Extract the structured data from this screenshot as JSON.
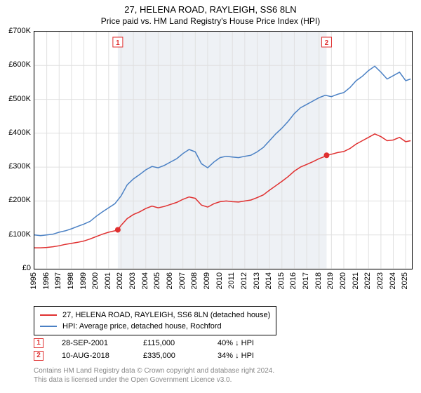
{
  "title": "27, HELENA ROAD, RAYLEIGH, SS6 8LN",
  "subtitle": "Price paid vs. HM Land Registry's House Price Index (HPI)",
  "chart": {
    "type": "line",
    "background_color": "#ffffff",
    "grid_color": "#e0e0e0",
    "plot_band_color": "#eef1f5",
    "border_color": "#000000",
    "title_fontsize": 13,
    "label_fontsize": 11,
    "line_width": 1.5,
    "ylim": [
      0,
      700000
    ],
    "ytick_step": 100000,
    "ytick_labels": [
      "£0",
      "£100K",
      "£200K",
      "£300K",
      "£400K",
      "£500K",
      "£600K",
      "£700K"
    ],
    "xlim": [
      1995,
      2025.5
    ],
    "xtick_step": 1,
    "xtick_labels": [
      "1995",
      "1996",
      "1997",
      "1998",
      "1999",
      "2000",
      "2001",
      "2002",
      "2003",
      "2004",
      "2005",
      "2006",
      "2007",
      "2008",
      "2009",
      "2010",
      "2011",
      "2012",
      "2013",
      "2014",
      "2015",
      "2016",
      "2017",
      "2018",
      "2019",
      "2020",
      "2021",
      "2022",
      "2023",
      "2024",
      "2025"
    ],
    "plot_bands": [
      {
        "from": 2001.74,
        "to": 2018.61
      }
    ],
    "series": [
      {
        "name": "hpi",
        "color": "#4a80c4",
        "data": [
          [
            1995.0,
            100000
          ],
          [
            1995.5,
            98000
          ],
          [
            1996.0,
            100000
          ],
          [
            1996.5,
            102000
          ],
          [
            1997.0,
            108000
          ],
          [
            1997.5,
            112000
          ],
          [
            1998.0,
            118000
          ],
          [
            1998.5,
            125000
          ],
          [
            1999.0,
            132000
          ],
          [
            1999.5,
            140000
          ],
          [
            2000.0,
            155000
          ],
          [
            2000.5,
            168000
          ],
          [
            2001.0,
            180000
          ],
          [
            2001.5,
            192000
          ],
          [
            2002.0,
            215000
          ],
          [
            2002.5,
            248000
          ],
          [
            2003.0,
            265000
          ],
          [
            2003.5,
            278000
          ],
          [
            2004.0,
            292000
          ],
          [
            2004.5,
            302000
          ],
          [
            2005.0,
            298000
          ],
          [
            2005.5,
            305000
          ],
          [
            2006.0,
            315000
          ],
          [
            2006.5,
            325000
          ],
          [
            2007.0,
            340000
          ],
          [
            2007.5,
            352000
          ],
          [
            2008.0,
            345000
          ],
          [
            2008.5,
            310000
          ],
          [
            2009.0,
            298000
          ],
          [
            2009.5,
            315000
          ],
          [
            2010.0,
            328000
          ],
          [
            2010.5,
            332000
          ],
          [
            2011.0,
            330000
          ],
          [
            2011.5,
            328000
          ],
          [
            2012.0,
            332000
          ],
          [
            2012.5,
            335000
          ],
          [
            2013.0,
            345000
          ],
          [
            2013.5,
            358000
          ],
          [
            2014.0,
            378000
          ],
          [
            2014.5,
            398000
          ],
          [
            2015.0,
            415000
          ],
          [
            2015.5,
            435000
          ],
          [
            2016.0,
            458000
          ],
          [
            2016.5,
            475000
          ],
          [
            2017.0,
            485000
          ],
          [
            2017.5,
            495000
          ],
          [
            2018.0,
            505000
          ],
          [
            2018.5,
            512000
          ],
          [
            2019.0,
            508000
          ],
          [
            2019.5,
            515000
          ],
          [
            2020.0,
            520000
          ],
          [
            2020.5,
            535000
          ],
          [
            2021.0,
            555000
          ],
          [
            2021.5,
            568000
          ],
          [
            2022.0,
            585000
          ],
          [
            2022.5,
            598000
          ],
          [
            2023.0,
            580000
          ],
          [
            2023.5,
            560000
          ],
          [
            2024.0,
            570000
          ],
          [
            2024.5,
            580000
          ],
          [
            2025.0,
            555000
          ],
          [
            2025.4,
            560000
          ]
        ]
      },
      {
        "name": "property",
        "color": "#e03030",
        "data": [
          [
            1995.0,
            62000
          ],
          [
            1995.5,
            62000
          ],
          [
            1996.0,
            63000
          ],
          [
            1996.5,
            65000
          ],
          [
            1997.0,
            68000
          ],
          [
            1997.5,
            72000
          ],
          [
            1998.0,
            75000
          ],
          [
            1998.5,
            78000
          ],
          [
            1999.0,
            82000
          ],
          [
            1999.5,
            88000
          ],
          [
            2000.0,
            95000
          ],
          [
            2000.5,
            102000
          ],
          [
            2001.0,
            108000
          ],
          [
            2001.5,
            112000
          ],
          [
            2001.74,
            115000
          ],
          [
            2002.0,
            128000
          ],
          [
            2002.5,
            148000
          ],
          [
            2003.0,
            160000
          ],
          [
            2003.5,
            168000
          ],
          [
            2004.0,
            178000
          ],
          [
            2004.5,
            185000
          ],
          [
            2005.0,
            180000
          ],
          [
            2005.5,
            184000
          ],
          [
            2006.0,
            190000
          ],
          [
            2006.5,
            196000
          ],
          [
            2007.0,
            205000
          ],
          [
            2007.5,
            212000
          ],
          [
            2008.0,
            208000
          ],
          [
            2008.5,
            188000
          ],
          [
            2009.0,
            182000
          ],
          [
            2009.5,
            192000
          ],
          [
            2010.0,
            198000
          ],
          [
            2010.5,
            200000
          ],
          [
            2011.0,
            198000
          ],
          [
            2011.5,
            197000
          ],
          [
            2012.0,
            200000
          ],
          [
            2012.5,
            203000
          ],
          [
            2013.0,
            210000
          ],
          [
            2013.5,
            218000
          ],
          [
            2014.0,
            232000
          ],
          [
            2014.5,
            245000
          ],
          [
            2015.0,
            258000
          ],
          [
            2015.5,
            272000
          ],
          [
            2016.0,
            288000
          ],
          [
            2016.5,
            300000
          ],
          [
            2017.0,
            308000
          ],
          [
            2017.5,
            316000
          ],
          [
            2018.0,
            325000
          ],
          [
            2018.5,
            332000
          ],
          [
            2018.61,
            335000
          ],
          [
            2019.0,
            338000
          ],
          [
            2019.5,
            343000
          ],
          [
            2020.0,
            346000
          ],
          [
            2020.5,
            355000
          ],
          [
            2021.0,
            368000
          ],
          [
            2021.5,
            378000
          ],
          [
            2022.0,
            388000
          ],
          [
            2022.5,
            398000
          ],
          [
            2023.0,
            390000
          ],
          [
            2023.5,
            378000
          ],
          [
            2024.0,
            380000
          ],
          [
            2024.5,
            388000
          ],
          [
            2025.0,
            375000
          ],
          [
            2025.4,
            378000
          ]
        ]
      }
    ],
    "markers": [
      {
        "label": "1",
        "x": 2001.74,
        "y": 115000,
        "color": "#e03030",
        "border_color": "#e03030"
      },
      {
        "label": "2",
        "x": 2018.61,
        "y": 335000,
        "color": "#e03030",
        "border_color": "#e03030"
      }
    ]
  },
  "legend": {
    "border_color": "#000000",
    "items": [
      {
        "color": "#e03030",
        "label": "27, HELENA ROAD, RAYLEIGH, SS6 8LN (detached house)"
      },
      {
        "color": "#4a80c4",
        "label": "HPI: Average price, detached house, Rochford"
      }
    ]
  },
  "transactions": [
    {
      "marker": "1",
      "marker_color": "#e03030",
      "date": "28-SEP-2001",
      "price": "£115,000",
      "diff": "40% ↓ HPI"
    },
    {
      "marker": "2",
      "marker_color": "#e03030",
      "date": "10-AUG-2018",
      "price": "£335,000",
      "diff": "34% ↓ HPI"
    }
  ],
  "footnote": {
    "line1": "Contains HM Land Registry data © Crown copyright and database right 2024.",
    "line2": "This data is licensed under the Open Government Licence v3.0.",
    "color": "#888888"
  }
}
